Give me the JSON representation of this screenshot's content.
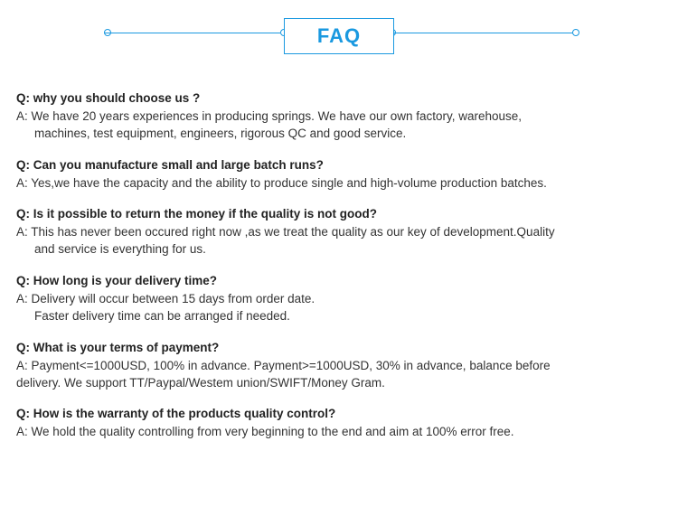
{
  "header": {
    "title": "FAQ"
  },
  "colors": {
    "accent": "#1a99e0",
    "text": "#222222",
    "answer": "#333333",
    "background": "#ffffff"
  },
  "faq": [
    {
      "q": "Q: why you should choose us ?",
      "a1": "A: We have 20 years experiences in producing springs. We have our own factory, warehouse,",
      "a2": "machines, test equipment, engineers, rigorous QC and good service."
    },
    {
      "q": "Q: Can you manufacture small and large batch runs?",
      "a1": "A: Yes,we have the capacity and the ability to produce single and high-volume production batches."
    },
    {
      "q": "Q: Is it possible to return the money if the quality is not good?",
      "a1": "A: This has never been occured right now ,as we treat the quality as our key of development.Quality",
      "a2": "and service is everything for us."
    },
    {
      "q": "Q: How long is your delivery time?",
      "a1": "A: Delivery will occur between 15 days from order date.",
      "a2": "Faster delivery time can be arranged if needed."
    },
    {
      "q": "Q: What is your terms of payment?",
      "a1": "A: Payment<=1000USD, 100% in advance. Payment>=1000USD, 30% in advance, balance before",
      "a2noindent": "delivery. We support TT/Paypal/Westem union/SWIFT/Money Gram."
    },
    {
      "q": "Q: How is the warranty of the products quality control?",
      "a1": "A: We hold the quality controlling from very beginning to the end and aim at 100% error free."
    }
  ]
}
